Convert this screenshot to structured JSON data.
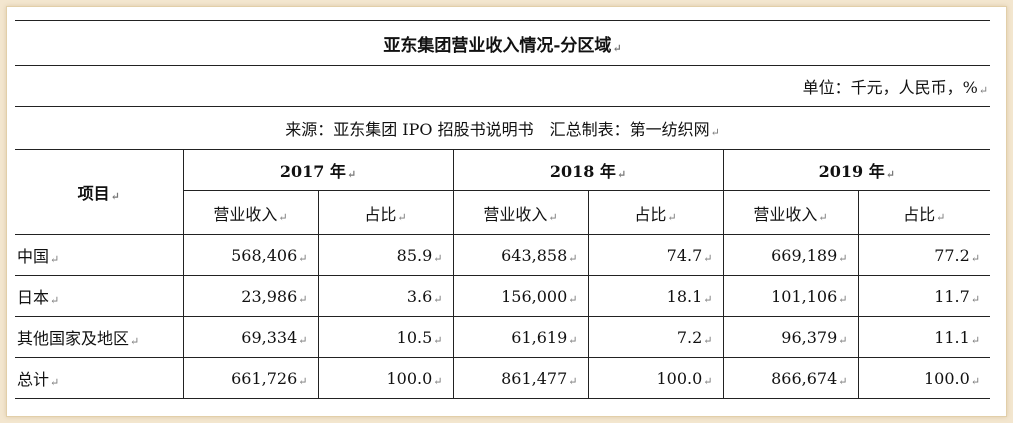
{
  "title": "亚东集团营业收入情况-分区域",
  "unit": "单位：千元，人民币，%",
  "source": "来源：亚东集团 IPO 招股书说明书　汇总制表：第一纺织网",
  "header": {
    "item_label": "项目",
    "years": [
      "2017 年",
      "2018 年",
      "2019 年"
    ],
    "sub_labels": [
      "营业收入",
      "占比",
      "营业收入",
      "占比",
      "营业收入",
      "占比"
    ]
  },
  "rows": [
    {
      "name": "中国",
      "cells": [
        "568,406",
        "85.9",
        "643,858",
        "74.7",
        "669,189",
        "77.2"
      ]
    },
    {
      "name": "日本",
      "cells": [
        "23,986",
        "3.6",
        "156,000",
        "18.1",
        "101,106",
        "11.7"
      ]
    },
    {
      "name": "其他国家及地区",
      "cells": [
        "69,334",
        "10.5",
        "61,619",
        "7.2",
        "96,379",
        "11.1"
      ]
    },
    {
      "name": "总计",
      "cells": [
        "661,726",
        "100.0",
        "861,477",
        "100.0",
        "866,674",
        "100.0"
      ]
    }
  ]
}
